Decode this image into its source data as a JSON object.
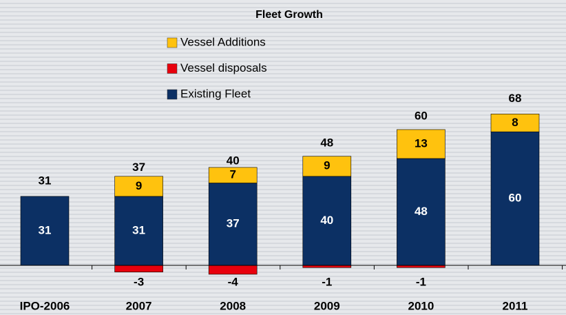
{
  "chart_data": {
    "type": "stacked-bar",
    "title": "Fleet Growth",
    "categories": [
      "IPO-2006",
      "2007",
      "2008",
      "2009",
      "2010",
      "2011"
    ],
    "series": [
      {
        "name": "Vessel Additions",
        "color": "#ffc20e",
        "values": [
          null,
          9,
          7,
          9,
          13,
          8
        ]
      },
      {
        "name": "Vessel disposals",
        "color": "#e8000d",
        "values": [
          null,
          -3,
          -4,
          -1,
          -1,
          null
        ]
      },
      {
        "name": "Existing Fleet",
        "color": "#0c3064",
        "values": [
          31,
          31,
          37,
          40,
          48,
          60
        ]
      }
    ],
    "totals": [
      31,
      37,
      40,
      48,
      60,
      68
    ]
  }
}
